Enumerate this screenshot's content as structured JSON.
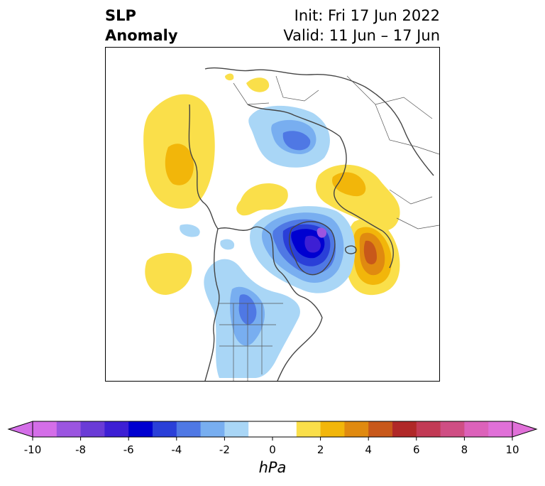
{
  "title": {
    "left_line1": "SLP",
    "left_line2": "Anomaly",
    "right_line1": "Init: Fri 17 Jun 2022",
    "right_line2": "Valid: 11 Jun – 17 Jun"
  },
  "colorbar": {
    "unit": "hPa",
    "tick_labels": [
      "-10",
      "-8",
      "-6",
      "-4",
      "-2",
      "0",
      "2",
      "4",
      "6",
      "8",
      "10"
    ],
    "colors": [
      "#d46ee8",
      "#9b55e0",
      "#6a3bd6",
      "#3d1fd4",
      "#0000d0",
      "#2a3fd8",
      "#4f78e4",
      "#78aef0",
      "#a9d6f6",
      "#ffffff",
      "#ffffff",
      "#fadf4a",
      "#f2b60a",
      "#e08a10",
      "#c8581a",
      "#b02828",
      "#c23a55",
      "#cf4e84",
      "#dc62ba",
      "#e070d8"
    ],
    "extend": "both"
  },
  "map": {
    "projection": "north-polar-stereographic",
    "variable": "sea-level-pressure-anomaly"
  }
}
